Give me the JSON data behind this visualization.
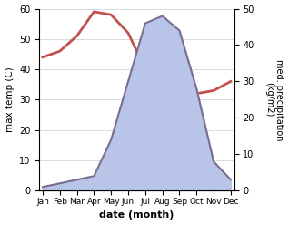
{
  "months": [
    "Jan",
    "Feb",
    "Mar",
    "Apr",
    "May",
    "Jun",
    "Jul",
    "Aug",
    "Sep",
    "Oct",
    "Nov",
    "Dec"
  ],
  "month_indices": [
    0,
    1,
    2,
    3,
    4,
    5,
    6,
    7,
    8,
    9,
    10,
    11
  ],
  "temperature": [
    44,
    46,
    51,
    59,
    58,
    52,
    40,
    33,
    31,
    32,
    33,
    36
  ],
  "precipitation": [
    1,
    2,
    3,
    4,
    14,
    30,
    46,
    48,
    44,
    28,
    8,
    3
  ],
  "temp_color": "#c0504d",
  "precip_fill_color": "#b8c4e8",
  "precip_line_color": "#7b6d8d",
  "temp_ylim": [
    0,
    60
  ],
  "precip_ylim": [
    0,
    50
  ],
  "temp_yticks": [
    0,
    10,
    20,
    30,
    40,
    50,
    60
  ],
  "precip_yticks": [
    0,
    10,
    20,
    30,
    40,
    50
  ],
  "xlabel": "date (month)",
  "ylabel_left": "max temp (C)",
  "ylabel_right": "med. precipitation (kg/m2)",
  "background_color": "#ffffff"
}
